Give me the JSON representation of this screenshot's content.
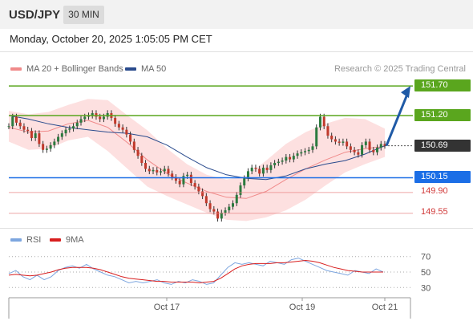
{
  "header": {
    "symbol": "USD/JPY",
    "interval": "30 MIN"
  },
  "datetime": "Monday, October 20, 2025 1:05:05 PM CET",
  "legend": {
    "bb": "MA 20 + Bollinger Bands",
    "ma50": "MA 50",
    "rsi": "RSI",
    "rsi_ma": "9MA",
    "source": "Research © 2025 Trading Central"
  },
  "colors": {
    "resistance": "#5aa61e",
    "support": "#1b6ee6",
    "minor": "#e88080",
    "current": "#333333",
    "bb_fill": "#fde0e0",
    "ma20": "#f08a8a",
    "ma50": "#2a4b8d",
    "arrow": "#1f5aa6",
    "rsi": "#7da6df",
    "rsi_ma": "#d81e1e"
  },
  "levels": [
    {
      "value": 151.7,
      "label": "151.70",
      "kind": "resistance"
    },
    {
      "value": 151.2,
      "label": "151.20",
      "kind": "resistance"
    },
    {
      "value": 150.69,
      "label": "150.69",
      "kind": "current"
    },
    {
      "value": 150.15,
      "label": "150.15",
      "kind": "support"
    },
    {
      "value": 149.9,
      "label": "149.90",
      "kind": "minor"
    },
    {
      "value": 149.55,
      "label": "149.55",
      "kind": "minor"
    }
  ],
  "chart_data": [
    {
      "type": "line",
      "subtype": "candlestick",
      "title": "USD/JPY 30 MIN",
      "ylim": [
        149.33,
        151.85
      ],
      "x_ticks": [
        "Oct 17",
        "Oct 19",
        "Oct 21"
      ],
      "indicators": [
        "MA 20 + Bollinger Bands",
        "MA 50"
      ],
      "target_arrow": {
        "from": 150.69,
        "to": 151.7
      },
      "series": [
        {
          "name": "Close",
          "values": [
            151.02,
            151.18,
            151.08,
            151.02,
            150.96,
            150.94,
            150.82,
            150.9,
            150.72,
            150.62,
            150.64,
            150.7,
            150.76,
            150.84,
            150.9,
            150.96,
            150.98,
            151.02,
            151.08,
            151.14,
            151.18,
            151.2,
            151.24,
            151.18,
            151.14,
            151.18,
            151.24,
            151.16,
            151.06,
            151.0,
            150.96,
            150.88,
            150.76,
            150.62,
            150.52,
            150.4,
            150.3,
            150.26,
            150.28,
            150.24,
            150.26,
            150.3,
            150.22,
            150.16,
            150.1,
            150.04,
            150.18,
            150.2,
            150.06,
            150.0,
            149.92,
            149.84,
            149.72,
            149.62,
            149.58,
            149.46,
            149.56,
            149.6,
            149.66,
            149.72,
            149.86,
            150.02,
            150.14,
            150.26,
            150.32,
            150.3,
            150.22,
            150.32,
            150.28,
            150.36,
            150.4,
            150.42,
            150.44,
            150.5,
            150.46,
            150.52,
            150.56,
            150.58,
            150.6,
            150.62,
            150.68,
            151.0,
            151.18,
            151.02,
            150.86,
            150.8,
            150.76,
            150.74,
            150.76,
            150.68,
            150.62,
            150.58,
            150.54,
            150.7,
            150.76,
            150.62,
            150.58,
            150.66,
            150.72,
            150.69
          ]
        },
        {
          "name": "MA 50",
          "values": [
            151.2,
            151.14,
            151.06,
            151.0,
            150.96,
            150.92,
            150.9,
            150.84,
            150.7,
            150.5,
            150.32,
            150.2,
            150.14,
            150.12,
            150.18,
            150.3,
            150.38,
            150.44,
            150.55,
            150.69
          ]
        }
      ],
      "bollinger": {
        "ma20": [
          151.0,
          150.92,
          150.94,
          151.06,
          151.12,
          151.0,
          150.74,
          150.45,
          150.22,
          150.06,
          149.92,
          149.82,
          149.8,
          149.92,
          150.12,
          150.3,
          150.45,
          150.58,
          150.64,
          150.68
        ],
        "upper": [
          151.28,
          151.22,
          151.26,
          151.38,
          151.48,
          151.46,
          151.2,
          150.95,
          150.64,
          150.38,
          150.2,
          150.12,
          150.18,
          150.44,
          150.72,
          150.92,
          151.06,
          151.16,
          151.14,
          150.98
        ],
        "lower": [
          150.76,
          150.62,
          150.64,
          150.78,
          150.84,
          150.6,
          150.3,
          150.0,
          149.84,
          149.7,
          149.56,
          149.44,
          149.42,
          149.48,
          149.6,
          149.78,
          150.02,
          150.24,
          150.38,
          150.5
        ]
      }
    },
    {
      "type": "line",
      "title": "RSI",
      "ylim": [
        22,
        78
      ],
      "y_ticks": [
        70,
        50,
        30
      ],
      "series": [
        {
          "name": "RSI",
          "values": [
            48,
            52,
            44,
            40,
            46,
            40,
            44,
            52,
            56,
            58,
            55,
            60,
            54,
            50,
            46,
            44,
            40,
            36,
            38,
            36,
            38,
            40,
            36,
            34,
            38,
            36,
            40,
            38,
            34,
            36,
            46,
            56,
            62,
            60,
            62,
            60,
            58,
            64,
            62,
            60,
            66,
            68,
            64,
            60,
            56,
            52,
            50,
            48,
            46,
            52,
            50,
            48,
            54,
            50
          ]
        },
        {
          "name": "9MA",
          "values": [
            46,
            47,
            46,
            45,
            46,
            48,
            50,
            53,
            55,
            56,
            56,
            56,
            55,
            53,
            50,
            47,
            44,
            42,
            41,
            40,
            39,
            38,
            38,
            37,
            37,
            37,
            37,
            36,
            37,
            38,
            42,
            48,
            54,
            58,
            60,
            61,
            61,
            61,
            62,
            62,
            63,
            64,
            65,
            64,
            62,
            59,
            56,
            54,
            52,
            51,
            50,
            50,
            50,
            50
          ]
        }
      ]
    }
  ]
}
